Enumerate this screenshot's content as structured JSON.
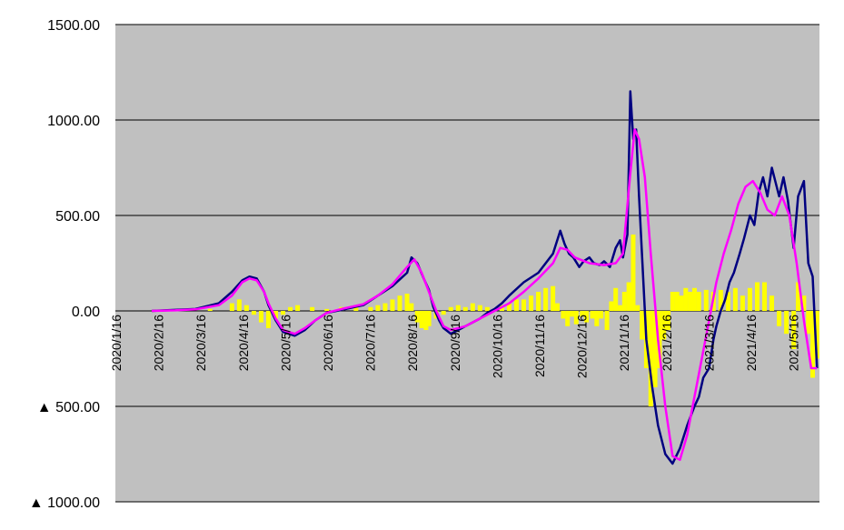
{
  "chart_data": {
    "type": "line",
    "title": "",
    "xlabel": "",
    "ylabel": "",
    "ylim": [
      -1000,
      1500
    ],
    "grid": true,
    "legend": "none",
    "background": "#c0c0c0",
    "y_ticks": [
      {
        "value": 1500,
        "label": "1500.00"
      },
      {
        "value": 1000,
        "label": "1000.00"
      },
      {
        "value": 500,
        "label": "500.00"
      },
      {
        "value": 0,
        "label": "0.00"
      },
      {
        "value": -500,
        "label": "▲ 500.00"
      },
      {
        "value": -1000,
        "label": "▲ 1000.00"
      }
    ],
    "x_ticks": [
      "2020/1/16",
      "2020/2/16",
      "2020/3/16",
      "2020/4/16",
      "2020/5/16",
      "2020/6/16",
      "2020/7/16",
      "2020/8/16",
      "2020/9/16",
      "2020/10/16",
      "2020/11/16",
      "2020/12/16",
      "2021/1/16",
      "2021/2/16",
      "2021/3/16",
      "2021/4/16",
      "2021/5/16"
    ],
    "series": [
      {
        "color": "#000080",
        "kind": "line",
        "x": [
          0,
          16,
          30,
          46,
          55,
          62,
          67,
          72,
          77,
          80,
          85,
          90,
          98,
          105,
          112,
          120,
          130,
          145,
          155,
          165,
          175,
          178,
          182,
          187,
          190,
          193,
          197,
          200,
          205,
          210,
          215,
          220,
          225,
          230,
          235,
          240,
          245,
          255,
          265,
          275,
          280,
          283,
          286,
          289,
          293,
          296,
          300,
          303,
          307,
          310,
          314,
          318,
          321,
          323,
          326,
          328,
          330,
          332,
          334,
          336,
          339,
          343,
          347,
          352,
          357,
          362,
          367,
          372,
          375,
          378,
          382,
          385,
          387,
          390,
          393,
          396,
          399,
          403,
          406,
          410,
          413,
          416,
          419,
          422,
          425,
          430,
          433,
          436,
          440,
          443,
          447,
          450,
          453,
          456
        ],
        "y": [
          0,
          5,
          10,
          40,
          100,
          160,
          180,
          170,
          100,
          30,
          -50,
          -110,
          -130,
          -100,
          -50,
          -10,
          5,
          30,
          80,
          130,
          200,
          280,
          250,
          160,
          110,
          20,
          -50,
          -90,
          -120,
          -100,
          -80,
          -60,
          -40,
          -10,
          10,
          40,
          80,
          150,
          200,
          300,
          420,
          350,
          300,
          280,
          230,
          260,
          280,
          250,
          240,
          260,
          230,
          330,
          370,
          280,
          400,
          1150,
          900,
          950,
          600,
          300,
          -150,
          -400,
          -600,
          -750,
          -800,
          -720,
          -600,
          -500,
          -450,
          -350,
          -300,
          -150,
          -80,
          0,
          60,
          150,
          200,
          300,
          380,
          500,
          450,
          620,
          700,
          600,
          750,
          600,
          700,
          580,
          330,
          600,
          680,
          250,
          180,
          -300
        ]
      },
      {
        "color": "#ff00ff",
        "kind": "line",
        "x": [
          0,
          16,
          30,
          46,
          55,
          62,
          67,
          72,
          77,
          80,
          85,
          90,
          98,
          105,
          112,
          120,
          130,
          145,
          155,
          165,
          175,
          180,
          185,
          190,
          195,
          200,
          205,
          215,
          225,
          235,
          245,
          255,
          265,
          275,
          280,
          285,
          290,
          300,
          310,
          318,
          323,
          328,
          331,
          334,
          338,
          342,
          347,
          352,
          357,
          362,
          367,
          372,
          377,
          382,
          387,
          392,
          397,
          402,
          407,
          412,
          417,
          422,
          427,
          432,
          437,
          442,
          447,
          452,
          456
        ],
        "y": [
          0,
          3,
          8,
          30,
          80,
          150,
          170,
          160,
          100,
          40,
          -40,
          -100,
          -120,
          -90,
          -50,
          -10,
          10,
          35,
          80,
          140,
          230,
          270,
          200,
          100,
          0,
          -80,
          -100,
          -80,
          -40,
          0,
          40,
          100,
          170,
          250,
          330,
          320,
          280,
          250,
          240,
          250,
          300,
          720,
          950,
          900,
          700,
          300,
          -150,
          -500,
          -760,
          -780,
          -650,
          -450,
          -250,
          -50,
          150,
          300,
          420,
          560,
          650,
          680,
          620,
          530,
          500,
          600,
          500,
          250,
          -50,
          -300,
          -300
        ]
      },
      {
        "color": "#ffff00",
        "kind": "bar",
        "x": [
          0,
          20,
          40,
          55,
          60,
          65,
          70,
          75,
          80,
          85,
          90,
          95,
          100,
          110,
          120,
          130,
          140,
          150,
          155,
          160,
          165,
          170,
          175,
          178,
          182,
          185,
          188,
          190,
          195,
          200,
          205,
          210,
          215,
          220,
          225,
          230,
          235,
          240,
          245,
          250,
          255,
          260,
          265,
          270,
          275,
          278,
          282,
          285,
          288,
          291,
          295,
          298,
          302,
          305,
          308,
          312,
          315,
          318,
          321,
          324,
          327,
          330,
          333,
          336,
          339,
          342,
          345,
          348,
          351,
          354,
          357,
          360,
          363,
          366,
          369,
          372,
          375,
          380,
          385,
          390,
          395,
          400,
          405,
          410,
          415,
          420,
          425,
          430,
          435,
          440,
          443,
          447,
          450,
          453,
          456
        ],
        "y": [
          0,
          0,
          10,
          40,
          60,
          30,
          -20,
          -60,
          -90,
          -40,
          -20,
          20,
          30,
          20,
          10,
          20,
          20,
          20,
          30,
          40,
          60,
          80,
          90,
          40,
          -60,
          -90,
          -100,
          -80,
          -40,
          -20,
          20,
          30,
          20,
          40,
          30,
          20,
          10,
          30,
          40,
          60,
          60,
          80,
          100,
          120,
          130,
          40,
          -40,
          -80,
          -30,
          -70,
          -30,
          -60,
          -40,
          -80,
          -40,
          -100,
          50,
          120,
          30,
          100,
          150,
          400,
          30,
          -150,
          -300,
          -500,
          -400,
          -300,
          -150,
          -100,
          100,
          100,
          80,
          120,
          100,
          120,
          100,
          110,
          100,
          110,
          100,
          120,
          80,
          120,
          150,
          150,
          80,
          -80,
          -120,
          -200,
          150,
          80,
          -120,
          -350,
          -250
        ]
      }
    ]
  }
}
